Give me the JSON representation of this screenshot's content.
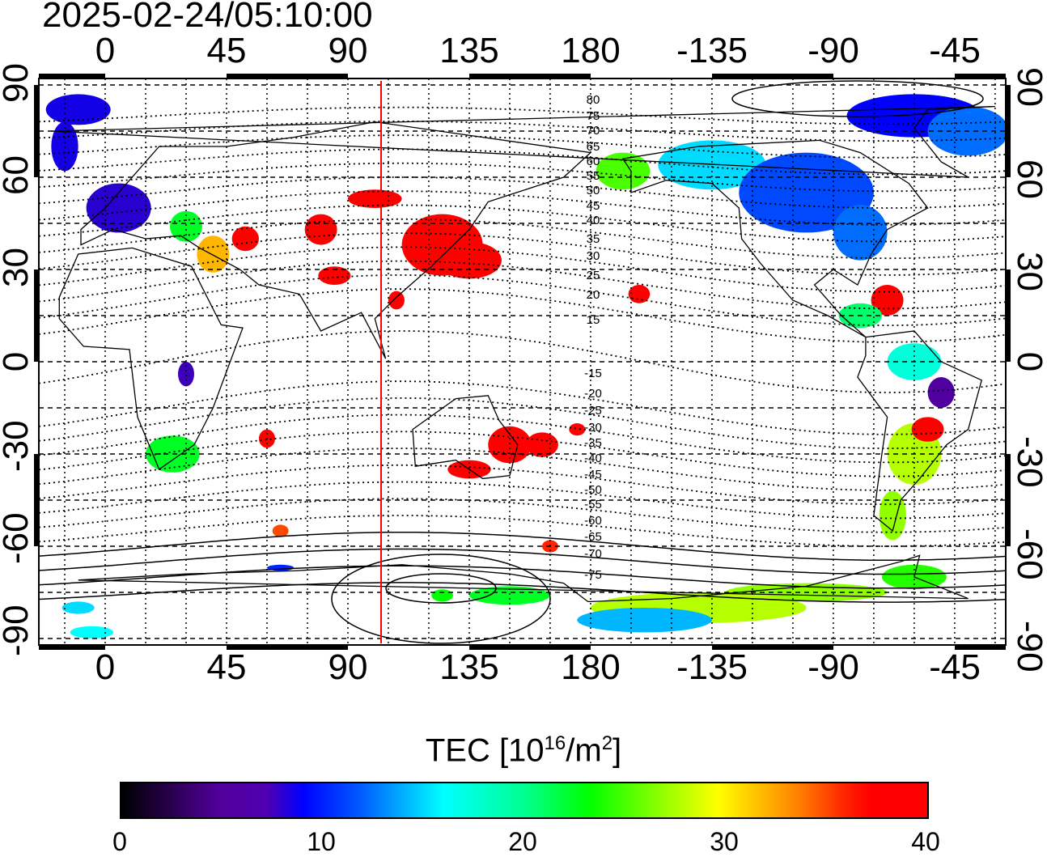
{
  "title": "2025-02-24/05:10:00",
  "lon_ticks": [
    "0",
    "45",
    "90",
    "135",
    "180",
    "-135",
    "-90",
    "-45"
  ],
  "lat_ticks_left": [
    "90",
    "60",
    "30",
    "0",
    "-30",
    "-60",
    "-90"
  ],
  "lat_ticks_right": [
    "90",
    "60",
    "30",
    "0",
    "-30",
    "-60",
    "-90"
  ],
  "contour_labels": [
    "80",
    "75",
    "70",
    "65",
    "60",
    "55",
    "50",
    "45",
    "40",
    "35",
    "30",
    "25",
    "20",
    "15",
    "-15",
    "-20",
    "-25",
    "-30",
    "-35",
    "-40",
    "-45",
    "-50",
    "-55",
    "-60",
    "-65",
    "-70",
    "-75"
  ],
  "colorbar": {
    "title_main": "TEC  [10",
    "title_exp1": "16",
    "title_mid": "/m",
    "title_exp2": "2",
    "title_end": "]",
    "ticks": [
      "0",
      "10",
      "20",
      "30",
      "40"
    ],
    "range": [
      0,
      40
    ]
  },
  "colors": {
    "terminator_line": "#ff0000"
  }
}
